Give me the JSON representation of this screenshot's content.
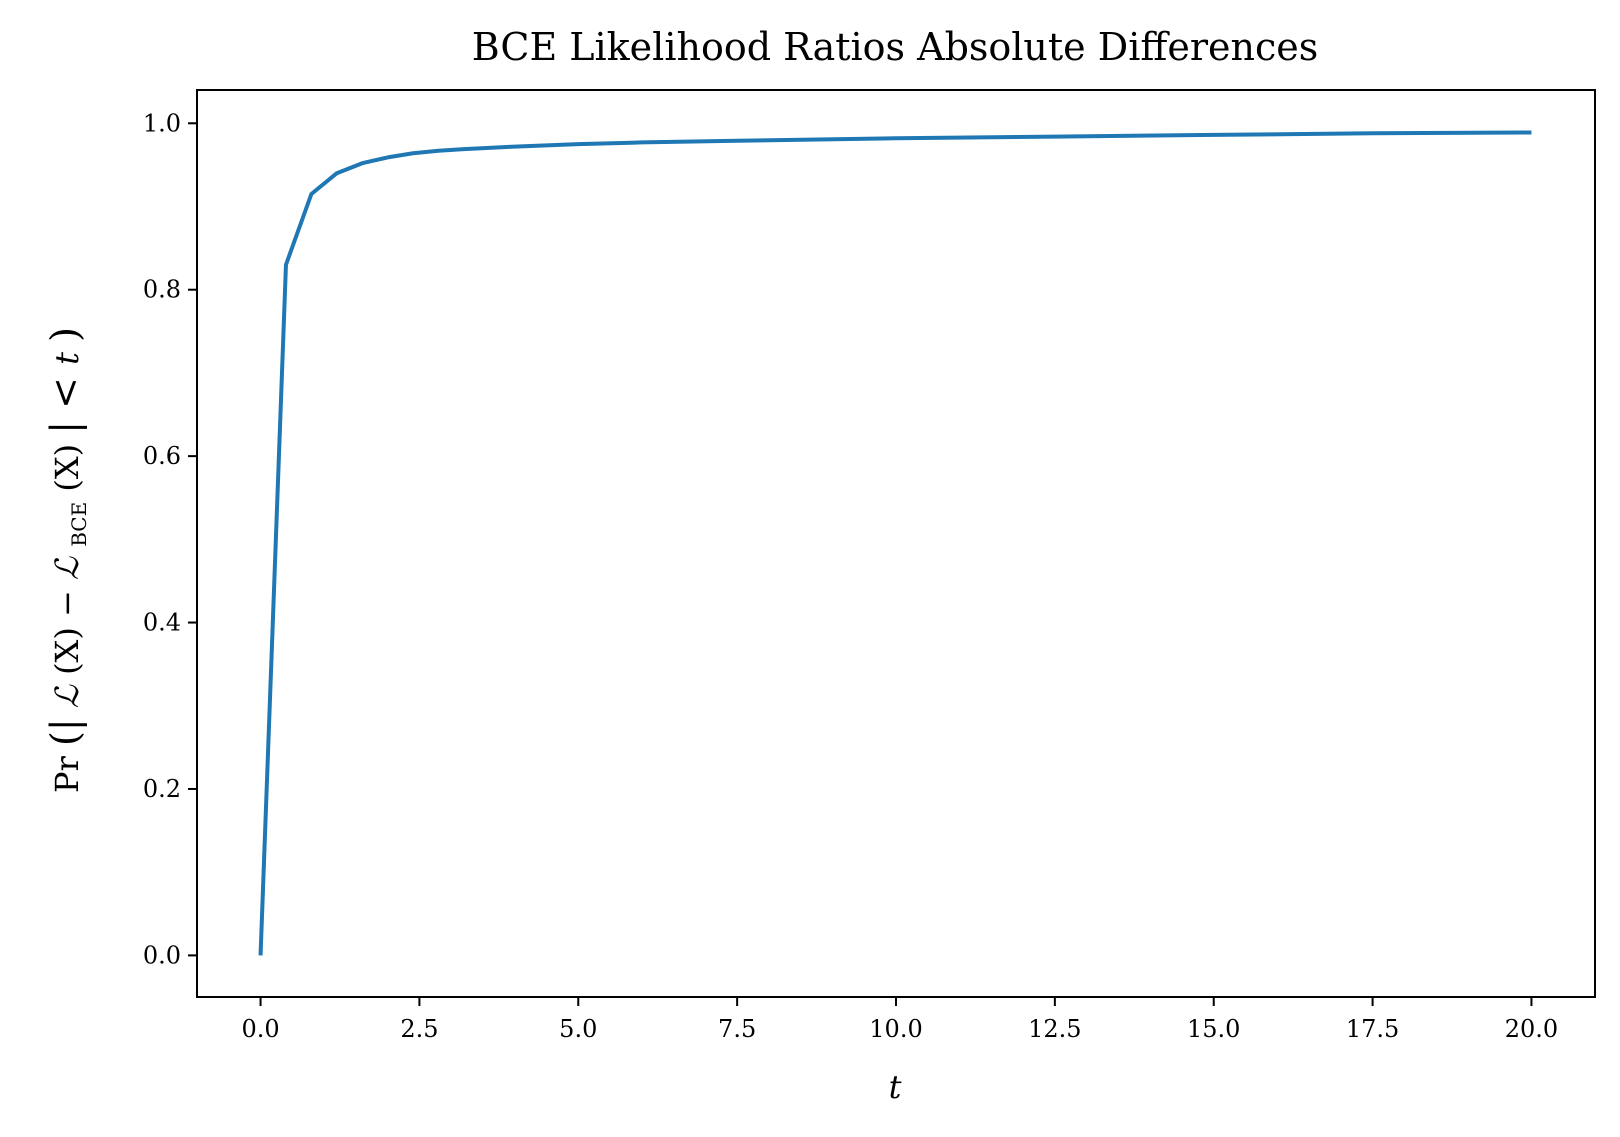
{
  "chart_data": {
    "type": "line",
    "title": "BCE Likelihood Ratios Absolute Differences",
    "xlabel": "t",
    "ylabel": {
      "prefix": "Pr",
      "open": "(|",
      "term1": "ℒ",
      "arg1": "(X)",
      "minus": " − ",
      "term2": "ℒ",
      "subscript": "BCE",
      "arg2": "(X)",
      "close": "| < ",
      "var": "t",
      "end": ")"
    },
    "xlim": [
      -1,
      21
    ],
    "ylim": [
      -0.05,
      1.04
    ],
    "x_ticks": [
      0.0,
      2.5,
      5.0,
      7.5,
      10.0,
      12.5,
      15.0,
      17.5,
      20.0
    ],
    "x_tick_labels": [
      "0.0",
      "2.5",
      "5.0",
      "7.5",
      "10.0",
      "12.5",
      "15.0",
      "17.5",
      "20.0"
    ],
    "y_ticks": [
      0.0,
      0.2,
      0.4,
      0.6,
      0.8,
      1.0
    ],
    "y_tick_labels": [
      "0.0",
      "0.2",
      "0.4",
      "0.6",
      "0.8",
      "1.0"
    ],
    "grid": false,
    "line_color": "#1f77b4",
    "series": [
      {
        "x": [
          0.0,
          0.4,
          0.8,
          1.2,
          1.6,
          2.0,
          2.4,
          2.8,
          3.2,
          4.0,
          5.0,
          6.0,
          7.5,
          10.0,
          12.5,
          15.0,
          17.5,
          20.0
        ],
        "y": [
          0.0,
          0.83,
          0.915,
          0.94,
          0.952,
          0.959,
          0.964,
          0.967,
          0.969,
          0.972,
          0.975,
          0.977,
          0.979,
          0.982,
          0.984,
          0.986,
          0.988,
          0.989
        ]
      }
    ]
  }
}
